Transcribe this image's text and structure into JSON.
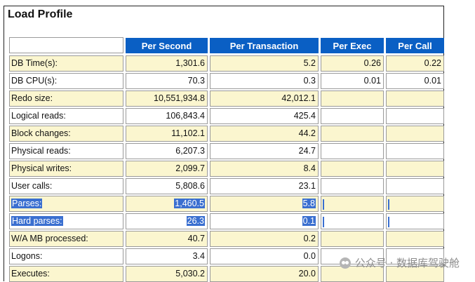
{
  "title": "Load Profile",
  "headers": [
    "Per Second",
    "Per Transaction",
    "Per Exec",
    "Per Call"
  ],
  "rows": [
    {
      "label": "DB Time(s):",
      "per_second": "1,301.6",
      "per_transaction": "5.2",
      "per_exec": "0.26",
      "per_call": "0.22",
      "shade": "yellow"
    },
    {
      "label": "DB CPU(s):",
      "per_second": "70.3",
      "per_transaction": "0.3",
      "per_exec": "0.01",
      "per_call": "0.01",
      "shade": "white"
    },
    {
      "label": "Redo size:",
      "per_second": "10,551,934.8",
      "per_transaction": "42,012.1",
      "per_exec": "",
      "per_call": "",
      "shade": "yellow"
    },
    {
      "label": "Logical reads:",
      "per_second": "106,843.4",
      "per_transaction": "425.4",
      "per_exec": "",
      "per_call": "",
      "shade": "white"
    },
    {
      "label": "Block changes:",
      "per_second": "11,102.1",
      "per_transaction": "44.2",
      "per_exec": "",
      "per_call": "",
      "shade": "yellow"
    },
    {
      "label": "Physical reads:",
      "per_second": "6,207.3",
      "per_transaction": "24.7",
      "per_exec": "",
      "per_call": "",
      "shade": "white"
    },
    {
      "label": "Physical writes:",
      "per_second": "2,099.7",
      "per_transaction": "8.4",
      "per_exec": "",
      "per_call": "",
      "shade": "yellow"
    },
    {
      "label": "User calls:",
      "per_second": "5,808.6",
      "per_transaction": "23.1",
      "per_exec": "",
      "per_call": "",
      "shade": "white"
    },
    {
      "label": "Parses:",
      "per_second": "1,460.5",
      "per_transaction": "5.8",
      "per_exec": "",
      "per_call": "",
      "shade": "yellow",
      "selected": true
    },
    {
      "label": "Hard parses:",
      "per_second": "26.3",
      "per_transaction": "0.1",
      "per_exec": "",
      "per_call": "",
      "shade": "white",
      "selected": true
    },
    {
      "label": "W/A MB processed:",
      "per_second": "40.7",
      "per_transaction": "0.2",
      "per_exec": "",
      "per_call": "",
      "shade": "yellow"
    },
    {
      "label": "Logons:",
      "per_second": "3.4",
      "per_transaction": "0.0",
      "per_exec": "",
      "per_call": "",
      "shade": "white"
    },
    {
      "label": "Executes:",
      "per_second": "5,030.2",
      "per_transaction": "20.0",
      "per_exec": "",
      "per_call": "",
      "shade": "yellow"
    }
  ],
  "watermark": "公众号 · 数据库驾驶舱",
  "colors": {
    "header_bg": "#0a5fc4",
    "row_yellow": "#fbf6cf",
    "selection": "#3a6fd0"
  }
}
